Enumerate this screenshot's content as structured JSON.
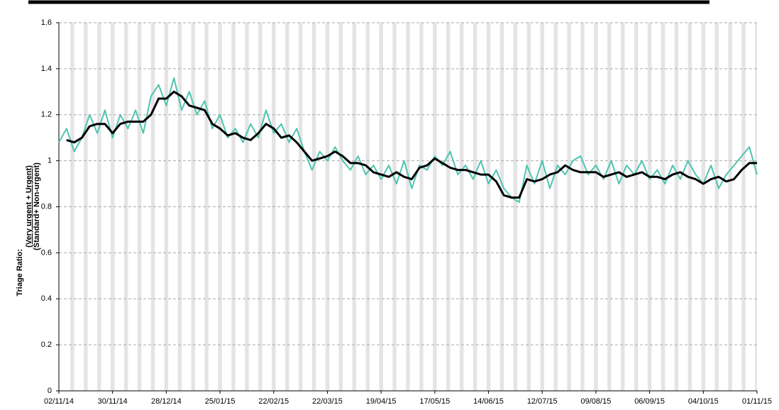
{
  "chart_data": {
    "type": "line",
    "y_label": {
      "prefix": "Triage Ratio:",
      "numerator": "(Very urgent + Urgent)",
      "denominator": "(Standard+ Non-urgent)"
    },
    "x": [
      "02/11/14",
      "06/11/14",
      "10/11/14",
      "14/11/14",
      "18/11/14",
      "22/11/14",
      "26/11/14",
      "30/11/14",
      "04/12/14",
      "08/12/14",
      "12/12/14",
      "16/12/14",
      "20/12/14",
      "24/12/14",
      "28/12/14",
      "01/01/15",
      "05/01/15",
      "09/01/15",
      "13/01/15",
      "17/01/15",
      "21/01/15",
      "25/01/15",
      "29/01/15",
      "02/02/15",
      "06/02/15",
      "10/02/15",
      "14/02/15",
      "18/02/15",
      "22/02/15",
      "26/02/15",
      "02/03/15",
      "06/03/15",
      "10/03/15",
      "14/03/15",
      "18/03/15",
      "22/03/15",
      "26/03/15",
      "30/03/15",
      "03/04/15",
      "07/04/15",
      "11/04/15",
      "15/04/15",
      "19/04/15",
      "23/04/15",
      "27/04/15",
      "01/05/15",
      "05/05/15",
      "09/05/15",
      "13/05/15",
      "17/05/15",
      "21/05/15",
      "25/05/15",
      "29/05/15",
      "02/06/15",
      "06/06/15",
      "10/06/15",
      "14/06/15",
      "18/06/15",
      "22/06/15",
      "26/06/15",
      "30/06/15",
      "04/07/15",
      "08/07/15",
      "12/07/15",
      "16/07/15",
      "20/07/15",
      "24/07/15",
      "28/07/15",
      "01/08/15",
      "05/08/15",
      "09/08/15",
      "13/08/15",
      "17/08/15",
      "21/08/15",
      "25/08/15",
      "29/08/15",
      "02/09/15",
      "06/09/15",
      "10/09/15",
      "14/09/15",
      "18/09/15",
      "22/09/15",
      "26/09/15",
      "30/09/15",
      "04/10/15",
      "08/10/15",
      "12/10/15",
      "16/10/15",
      "20/10/15",
      "24/10/15",
      "28/10/15",
      "01/11/15"
    ],
    "series": [
      {
        "color": "#4fc4b0",
        "width": 2,
        "values": [
          1.08,
          1.14,
          1.04,
          1.1,
          1.2,
          1.12,
          1.22,
          1.1,
          1.2,
          1.14,
          1.22,
          1.12,
          1.28,
          1.33,
          1.24,
          1.36,
          1.22,
          1.3,
          1.2,
          1.26,
          1.14,
          1.2,
          1.1,
          1.14,
          1.08,
          1.16,
          1.1,
          1.22,
          1.12,
          1.16,
          1.08,
          1.14,
          1.04,
          0.96,
          1.04,
          1.0,
          1.06,
          1.0,
          0.96,
          1.02,
          0.94,
          0.98,
          0.92,
          0.98,
          0.9,
          1.0,
          0.88,
          0.98,
          0.96,
          1.02,
          0.98,
          1.04,
          0.94,
          0.98,
          0.92,
          1.0,
          0.9,
          0.96,
          0.88,
          0.84,
          0.82,
          0.98,
          0.9,
          1.0,
          0.88,
          0.98,
          0.94,
          1.0,
          1.02,
          0.94,
          0.98,
          0.92,
          1.0,
          0.9,
          0.98,
          0.94,
          1.0,
          0.92,
          0.96,
          0.9,
          0.98,
          0.92,
          1.0,
          0.94,
          0.9,
          0.98,
          0.88,
          0.94,
          0.98,
          1.02,
          1.06,
          0.94
        ]
      },
      {
        "color": "#000000",
        "width": 3,
        "values": [
          null,
          1.09,
          1.08,
          1.1,
          1.15,
          1.16,
          1.16,
          1.12,
          1.16,
          1.17,
          1.17,
          1.17,
          1.2,
          1.27,
          1.27,
          1.3,
          1.28,
          1.24,
          1.23,
          1.22,
          1.16,
          1.14,
          1.11,
          1.12,
          1.1,
          1.09,
          1.12,
          1.16,
          1.14,
          1.1,
          1.11,
          1.08,
          1.04,
          1.0,
          1.01,
          1.02,
          1.04,
          1.02,
          0.99,
          0.99,
          0.98,
          0.95,
          0.94,
          0.93,
          0.95,
          0.93,
          0.92,
          0.97,
          0.98,
          1.01,
          0.99,
          0.97,
          0.96,
          0.96,
          0.95,
          0.94,
          0.94,
          0.91,
          0.85,
          0.84,
          0.84,
          0.92,
          0.91,
          0.92,
          0.94,
          0.95,
          0.98,
          0.96,
          0.95,
          0.95,
          0.95,
          0.93,
          0.94,
          0.95,
          0.93,
          0.94,
          0.95,
          0.93,
          0.93,
          0.92,
          0.94,
          0.95,
          0.93,
          0.92,
          0.9,
          0.92,
          0.93,
          0.91,
          0.92,
          0.96,
          0.99,
          0.99
        ]
      }
    ],
    "xlim": [
      "02/11/14",
      "01/11/15"
    ],
    "xticks": [
      "02/11/14",
      "30/11/14",
      "28/12/14",
      "25/01/15",
      "22/02/15",
      "22/03/15",
      "19/04/15",
      "17/05/15",
      "14/06/15",
      "12/07/15",
      "09/08/15",
      "06/09/15",
      "04/10/15",
      "01/11/15"
    ],
    "ylim": [
      0,
      1.6
    ],
    "yticks": [
      0,
      0.2,
      0.4,
      0.6,
      0.8,
      1,
      1.2,
      1.4,
      1.6
    ],
    "grid": true,
    "weekend_shading": true
  }
}
